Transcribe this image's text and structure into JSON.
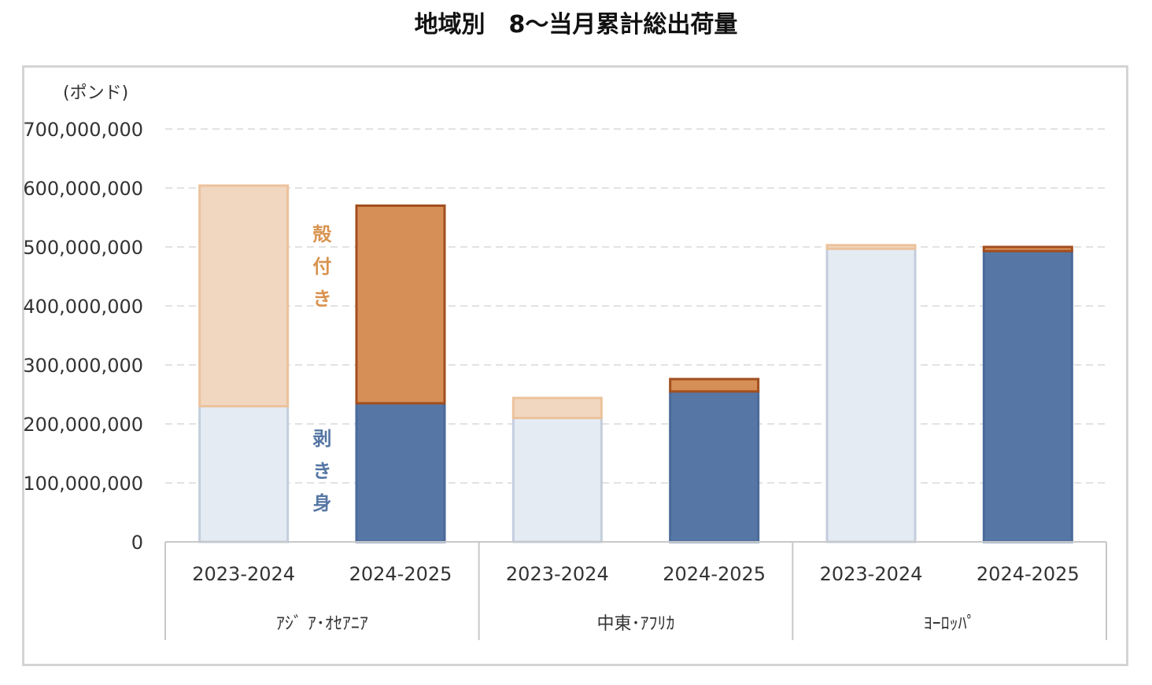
{
  "chart_data": {
    "type": "bar",
    "stacked": true,
    "title": "地域別　8～当月累計総出荷量",
    "unit_label": "(ポンド)",
    "ylim": [
      0,
      700000000
    ],
    "yticks": [
      "0",
      "100,000,000",
      "200,000,000",
      "300,000,000",
      "400,000,000",
      "500,000,000",
      "600,000,000",
      "700,000,000"
    ],
    "grid": true,
    "groups": [
      {
        "name": "ｱｼﾞ ｱ･ｵｾｱﾆｱ",
        "bars": [
          {
            "label": "2023-2024",
            "peeled": 230000000,
            "shell": 374000000
          },
          {
            "label": "2024-2025",
            "peeled": 235000000,
            "shell": 335000000
          }
        ]
      },
      {
        "name": "中東･ｱﾌﾘｶ",
        "bars": [
          {
            "label": "2023-2024",
            "peeled": 210000000,
            "shell": 34000000
          },
          {
            "label": "2024-2025",
            "peeled": 255000000,
            "shell": 21000000
          }
        ]
      },
      {
        "name": "ﾖｰﾛｯﾊﾟ",
        "bars": [
          {
            "label": "2023-2024",
            "peeled": 497000000,
            "shell": 6000000
          },
          {
            "label": "2024-2025",
            "peeled": 493000000,
            "shell": 7000000
          }
        ]
      }
    ],
    "annotations": {
      "shell": [
        "殻",
        "付",
        "き"
      ],
      "peeled": [
        "剥",
        "き",
        "身"
      ]
    },
    "colors": {
      "peeled_prev": "#e4ebf3",
      "peeled_prev_stroke": "#c3cedd",
      "peeled_curr": "#5677a5",
      "peeled_curr_stroke": "#4a6a99",
      "shell_prev": "#f1d7c0",
      "shell_prev_stroke": "#ecc29c",
      "shell_curr": "#d68f57",
      "shell_curr_stroke": "#a24f1f",
      "shell_text": "#d9934f",
      "peeled_text": "#5677a5"
    }
  }
}
